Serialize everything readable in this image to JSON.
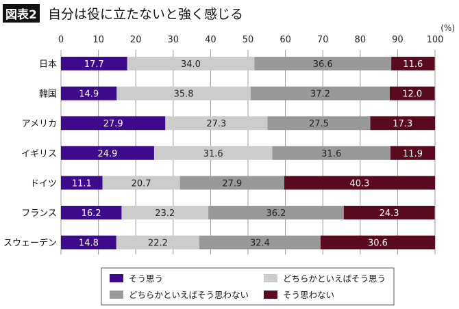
{
  "header": {
    "badge": "図表2",
    "title": "自分は役に立たないと強く感じる"
  },
  "chart_data": {
    "type": "bar",
    "orientation": "horizontal",
    "stacked": true,
    "title": "自分は役に立たないと強く感じる",
    "unit_label": "(%)",
    "xlim": [
      0,
      100
    ],
    "xticks": [
      0,
      10,
      20,
      30,
      40,
      50,
      60,
      70,
      80,
      90,
      100
    ],
    "grid": true,
    "legend_position": "bottom",
    "categories": [
      "日本",
      "韓国",
      "アメリカ",
      "イギリス",
      "ドイツ",
      "フランス",
      "スウェーデン"
    ],
    "series": [
      {
        "name": "そう思う",
        "color": "#3d0a8c",
        "values": [
          17.7,
          14.9,
          27.9,
          24.9,
          11.1,
          16.2,
          14.8
        ]
      },
      {
        "name": "どちらかといえばそう思う",
        "color": "#cccccc",
        "values": [
          34.0,
          35.8,
          27.3,
          31.6,
          20.7,
          23.2,
          22.2
        ]
      },
      {
        "name": "どちらかといえばそう思わない",
        "color": "#999999",
        "values": [
          36.6,
          37.2,
          27.5,
          31.6,
          27.9,
          36.2,
          32.4
        ]
      },
      {
        "name": "そう思わない",
        "color": "#5a0a1e",
        "values": [
          11.6,
          12.0,
          17.3,
          11.9,
          40.3,
          24.3,
          30.6
        ]
      }
    ]
  }
}
